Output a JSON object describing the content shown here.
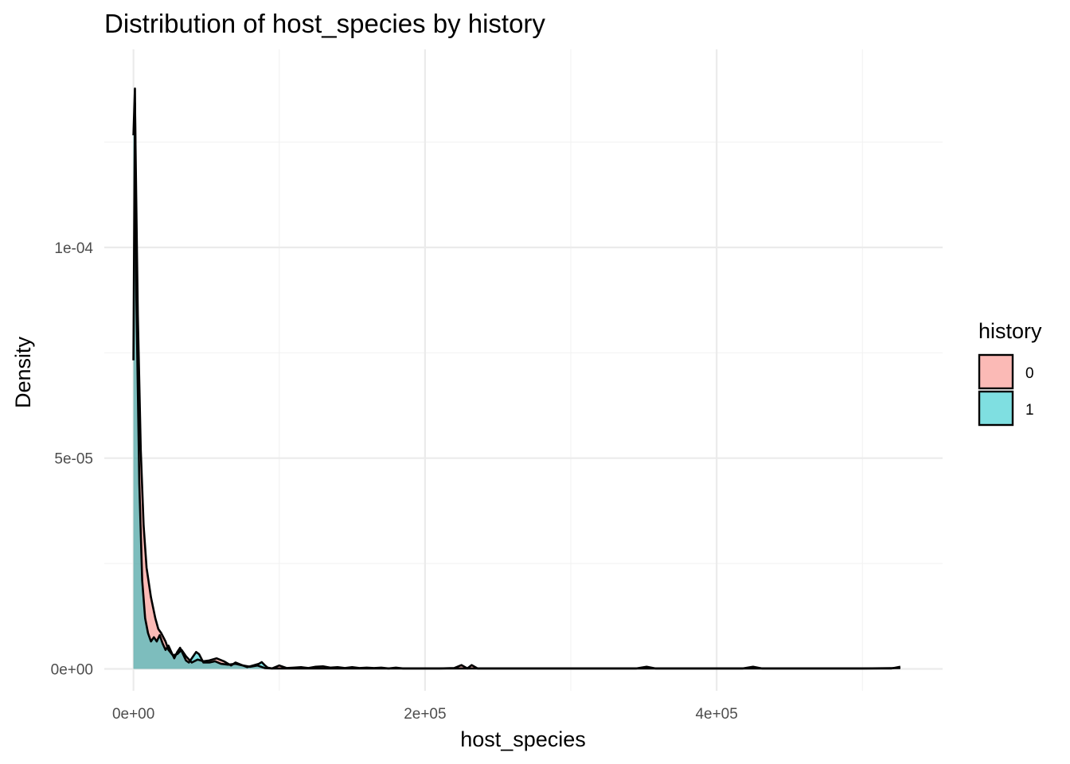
{
  "chart_data": {
    "type": "area",
    "subtype": "density",
    "title": "Distribution of host_species by history",
    "xlabel": "host_species",
    "ylabel": "Density",
    "xlim": [
      -20000,
      555000
    ],
    "ylim": [
      -5.2e-06,
      0.000147
    ],
    "x_ticks": [
      {
        "value": 0,
        "label": "0e+00"
      },
      {
        "value": 200000,
        "label": "2e+05"
      },
      {
        "value": 400000,
        "label": "4e+05"
      }
    ],
    "x_minor": [
      100000,
      300000,
      500000
    ],
    "y_ticks": [
      {
        "value": 0,
        "label": "0e+00"
      },
      {
        "value": 5e-05,
        "label": "5e-05"
      },
      {
        "value": 0.0001,
        "label": "1e-04"
      }
    ],
    "y_minor": [
      2.5e-05,
      7.5e-05,
      0.000125
    ],
    "grid": true,
    "legend": {
      "title": "history",
      "placement": "right"
    },
    "series": [
      {
        "name": "0",
        "color": "#F8766D",
        "fill_opacity": 0.5,
        "points": [
          [
            0,
            7.32e-05
          ],
          [
            1000,
            0.0001342
          ],
          [
            3000,
            8.4e-05
          ],
          [
            5000,
            5.2e-05
          ],
          [
            7000,
            3.4e-05
          ],
          [
            9000,
            2.4e-05
          ],
          [
            12000,
            1.7e-05
          ],
          [
            15000,
            1.2e-05
          ],
          [
            17000,
            9.5e-06
          ],
          [
            19000,
            8.5e-06
          ],
          [
            22000,
            6.5e-06
          ],
          [
            24000,
            4.5e-06
          ],
          [
            27000,
            3.2e-06
          ],
          [
            30000,
            3.5e-06
          ],
          [
            33000,
            4.5e-06
          ],
          [
            36000,
            3e-06
          ],
          [
            40000,
            1.5e-06
          ],
          [
            44000,
            2.2e-06
          ],
          [
            48000,
            1.8e-06
          ],
          [
            52000,
            2e-06
          ],
          [
            57000,
            2.5e-06
          ],
          [
            62000,
            1.8e-06
          ],
          [
            67000,
            8e-07
          ],
          [
            70000,
            1.5e-06
          ],
          [
            75000,
            8e-07
          ],
          [
            80000,
            5e-07
          ],
          [
            85000,
            8e-07
          ],
          [
            90000,
            2e-07
          ],
          [
            95000,
            1e-07
          ],
          [
            100000,
            8e-07
          ],
          [
            105000,
            2e-07
          ],
          [
            110000,
            3e-07
          ],
          [
            115000,
            4e-07
          ],
          [
            120000,
            2e-07
          ],
          [
            125000,
            5e-07
          ],
          [
            130000,
            6e-07
          ],
          [
            135000,
            3e-07
          ],
          [
            140000,
            4e-07
          ],
          [
            145000,
            2e-07
          ],
          [
            150000,
            4e-07
          ],
          [
            155000,
            2e-07
          ],
          [
            160000,
            3e-07
          ],
          [
            165000,
            2e-07
          ],
          [
            170000,
            3e-07
          ],
          [
            175000,
            1e-07
          ],
          [
            180000,
            3e-07
          ],
          [
            185000,
            1e-07
          ],
          [
            195000,
            1e-07
          ],
          [
            210000,
            1e-07
          ],
          [
            220000,
            2e-07
          ],
          [
            225000,
            9e-07
          ],
          [
            229000,
            1e-07
          ],
          [
            232000,
            9e-07
          ],
          [
            236000,
            1e-07
          ],
          [
            250000,
            1e-07
          ],
          [
            300000,
            1e-07
          ],
          [
            345000,
            1e-07
          ],
          [
            352000,
            5e-07
          ],
          [
            358000,
            1e-07
          ],
          [
            400000,
            1e-07
          ],
          [
            418000,
            1e-07
          ],
          [
            425000,
            5e-07
          ],
          [
            431000,
            1e-07
          ],
          [
            480000,
            1e-07
          ],
          [
            520000,
            1e-07
          ],
          [
            526000,
            5e-07
          ]
        ]
      },
      {
        "name": "1",
        "color": "#00BFC4",
        "fill_opacity": 0.5,
        "points": [
          [
            0,
            0.0001266
          ],
          [
            1000,
            0.0001377
          ],
          [
            2000,
            8.8e-05
          ],
          [
            4000,
            4.4e-05
          ],
          [
            6000,
            2.1e-05
          ],
          [
            8000,
            1.2e-05
          ],
          [
            10000,
            8.5e-06
          ],
          [
            12000,
            6.5e-06
          ],
          [
            14000,
            7.5e-06
          ],
          [
            16000,
            6.5e-06
          ],
          [
            18000,
            8e-06
          ],
          [
            20000,
            6e-06
          ],
          [
            22000,
            4.5e-06
          ],
          [
            24000,
            5.5e-06
          ],
          [
            26000,
            4e-06
          ],
          [
            28000,
            2.5e-06
          ],
          [
            30000,
            4e-06
          ],
          [
            32000,
            5e-06
          ],
          [
            34000,
            3.5e-06
          ],
          [
            36000,
            2e-06
          ],
          [
            38000,
            1.5e-06
          ],
          [
            40000,
            2.5e-06
          ],
          [
            43000,
            4e-06
          ],
          [
            45000,
            3.5e-06
          ],
          [
            48000,
            1.5e-06
          ],
          [
            52000,
            1.5e-06
          ],
          [
            56000,
            1.8e-06
          ],
          [
            60000,
            1.2e-06
          ],
          [
            65000,
            1e-06
          ],
          [
            70000,
            1.2e-06
          ],
          [
            75000,
            8e-07
          ],
          [
            78000,
            4e-07
          ],
          [
            82000,
            8e-07
          ],
          [
            86000,
            1.2e-06
          ],
          [
            88000,
            1.6e-06
          ],
          [
            90000,
            9e-07
          ],
          [
            92000,
            3e-07
          ],
          [
            95000,
            1e-07
          ],
          [
            100000,
            1e-07
          ],
          [
            120000,
            1e-07
          ],
          [
            150000,
            1e-07
          ],
          [
            200000,
            1e-07
          ],
          [
            235000,
            1e-07
          ],
          [
            300000,
            1e-07
          ],
          [
            350000,
            1e-07
          ],
          [
            400000,
            1e-07
          ],
          [
            450000,
            1e-07
          ],
          [
            500000,
            1e-07
          ],
          [
            526000,
            2e-07
          ]
        ]
      }
    ]
  }
}
